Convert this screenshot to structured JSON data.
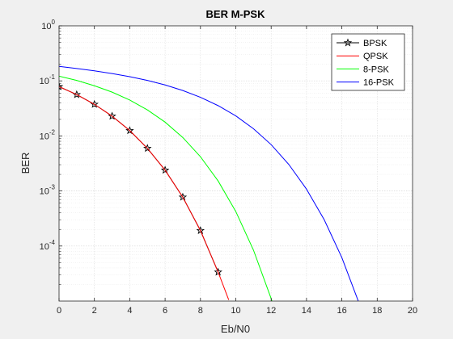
{
  "chart_data": {
    "type": "line",
    "title": "BER M-PSK",
    "xlabel": "Eb/N0",
    "ylabel": "BER",
    "xlim": [
      0,
      20
    ],
    "ylim": [
      1e-05,
      1
    ],
    "yscale": "log",
    "grid": true,
    "minor_grid": true,
    "legend_position": "top-right",
    "xticks": [
      "0",
      "2",
      "4",
      "6",
      "8",
      "10",
      "12",
      "14",
      "16",
      "18",
      "20"
    ],
    "yticks": [
      {
        "base": "10",
        "exp": "0"
      },
      {
        "base": "10",
        "exp": "-1"
      },
      {
        "base": "10",
        "exp": "-2"
      },
      {
        "base": "10",
        "exp": "-3"
      },
      {
        "base": "10",
        "exp": "-4"
      }
    ],
    "series": [
      {
        "name": "BPSK",
        "color": "#000000",
        "marker": "pentagram",
        "x": [
          0,
          1,
          2,
          3,
          4,
          5,
          6,
          7,
          8,
          9
        ],
        "y": [
          0.0786,
          0.0563,
          0.0375,
          0.0229,
          0.0125,
          0.00595,
          0.00239,
          0.000773,
          0.000191,
          3.36e-05
        ]
      },
      {
        "name": "QPSK",
        "color": "#ff0000",
        "marker": "none",
        "x": [
          0,
          1,
          2,
          3,
          4,
          5,
          6,
          7,
          8,
          9,
          9.6
        ],
        "y": [
          0.0786,
          0.0563,
          0.0375,
          0.0229,
          0.0125,
          0.00595,
          0.00239,
          0.000773,
          0.000191,
          3.36e-05,
          1.05e-05
        ]
      },
      {
        "name": "8-PSK",
        "color": "#00ff00",
        "marker": "none",
        "x": [
          0,
          1,
          2,
          3,
          4,
          5,
          6,
          7,
          8,
          9,
          10,
          11,
          12,
          12.9
        ],
        "y": [
          0.122,
          0.102,
          0.0815,
          0.0625,
          0.0448,
          0.0297,
          0.0178,
          0.00937,
          0.00419,
          0.00152,
          0.000423,
          8.42e-05,
          1.11e-05,
          1.3e-06
        ]
      },
      {
        "name": "16-PSK",
        "color": "#0000ff",
        "marker": "none",
        "x": [
          0,
          1,
          2,
          3,
          4,
          5,
          6,
          7,
          8,
          9,
          10,
          11,
          12,
          13,
          14,
          15,
          16,
          17,
          17.4
        ],
        "y": [
          0.183,
          0.168,
          0.152,
          0.136,
          0.119,
          0.102,
          0.0843,
          0.0668,
          0.0503,
          0.0355,
          0.0231,
          0.0135,
          0.00695,
          0.00303,
          0.00108,
          0.000301,
          6.16e-05,
          8.7e-06,
          3.8e-06
        ]
      }
    ]
  }
}
